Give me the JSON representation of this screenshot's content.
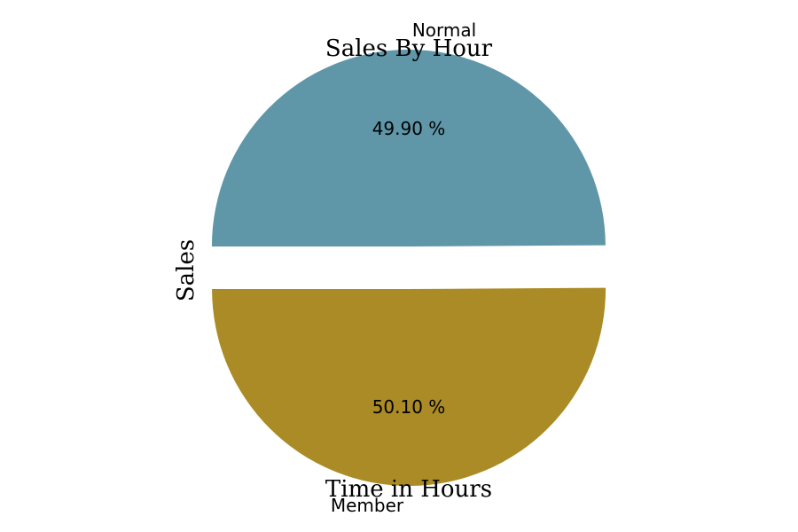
{
  "chart_data": {
    "type": "pie",
    "title": "Sales By Hour",
    "xlabel": "Time in Hours",
    "ylabel": "Sales",
    "slices": [
      {
        "label": "Normal",
        "value": 49.9,
        "pct_label": "49.90 %",
        "color": "#5f97a8"
      },
      {
        "label": "Member",
        "value": 50.1,
        "pct_label": "50.10 %",
        "color": "#ab8b26"
      }
    ]
  }
}
